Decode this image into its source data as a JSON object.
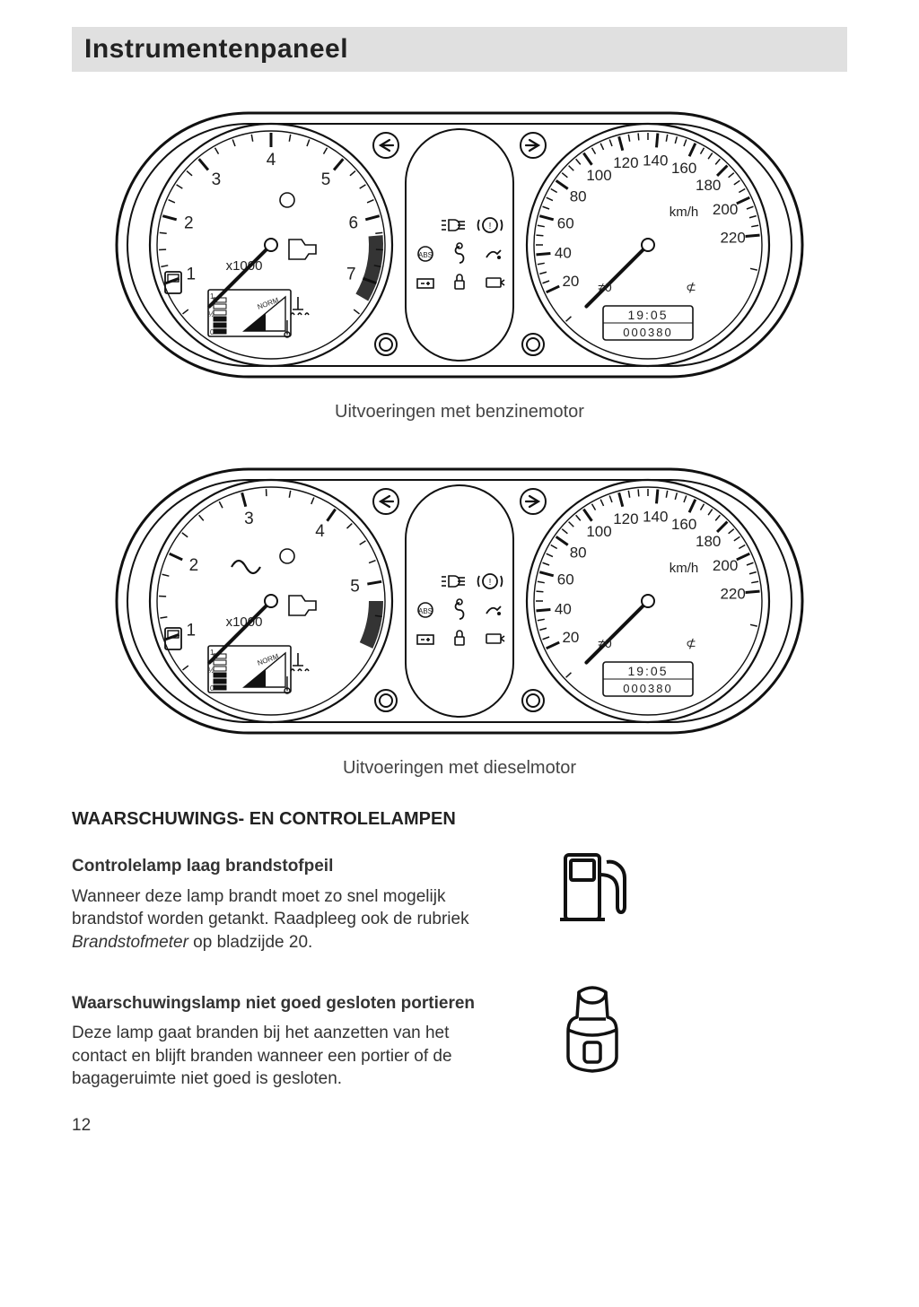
{
  "page": {
    "title": "Instrumentenpaneel",
    "number": "12"
  },
  "captions": {
    "petrol": "Uitvoeringen met benzinemotor",
    "diesel": "Uitvoeringen met dieselmotor"
  },
  "tachometer": {
    "unit_label": "x1000",
    "petrol": {
      "labels": [
        "1",
        "2",
        "3",
        "4",
        "5",
        "6",
        "7"
      ],
      "label_angles_deg": [
        200,
        165,
        130,
        90,
        50,
        15,
        -20
      ],
      "needle_angle_deg": 225,
      "redline_start_deg": 5,
      "redline_end_deg": -30
    },
    "diesel": {
      "labels": [
        "1",
        "2",
        "3",
        "4",
        "5"
      ],
      "label_angles_deg": [
        200,
        155,
        105,
        55,
        10
      ],
      "needle_angle_deg": 225,
      "redline_start_deg": 0,
      "redline_end_deg": -25
    }
  },
  "speedometer": {
    "unit_label": "km/h",
    "labels": [
      "20",
      "40",
      "60",
      "80",
      "100",
      "120",
      "140",
      "160",
      "180",
      "200",
      "220"
    ],
    "label_angles_deg": [
      205,
      185,
      165,
      145,
      125,
      105,
      85,
      65,
      45,
      25,
      5
    ],
    "needle_angle_deg": 225,
    "lcd": {
      "clock": "19:05",
      "odo": "000380"
    }
  },
  "warning_text": {
    "heading": "WAARSCHUWINGS- EN CONTROLELAMPEN",
    "item1": {
      "title": "Controlelamp laag brandstofpeil",
      "body_1": "Wanneer deze lamp brandt moet zo snel mogelijk brandstof worden getankt. Raadpleeg ook de rubriek ",
      "body_italic": "Brandstofmeter",
      "body_2": " op bladzijde 20."
    },
    "item2": {
      "title": "Waarschuwingslamp niet goed gesloten portieren",
      "body": "Deze lamp gaat branden bij het aanzetten van het contact en blijft branden wanneer een portier of de bagageruimte niet goed is gesloten."
    }
  },
  "colors": {
    "stroke": "#111111",
    "bg": "#ffffff",
    "header_bg": "#e0e0e0"
  }
}
